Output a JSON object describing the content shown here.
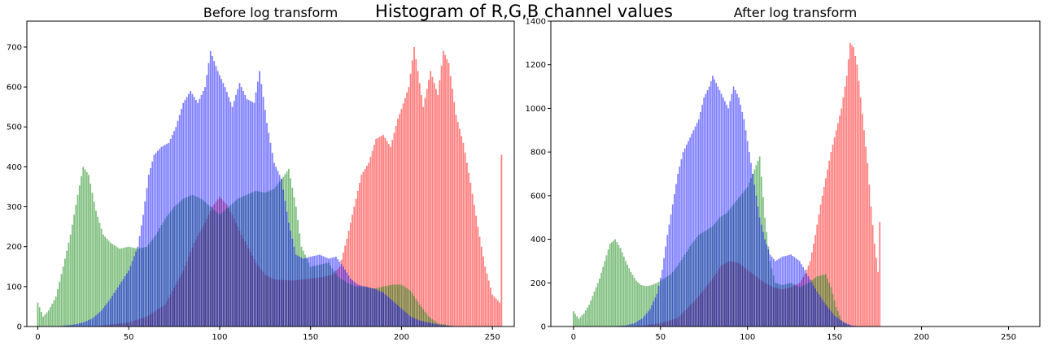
{
  "figure": {
    "title": "Histogram of R,G,B channel values"
  },
  "colors": {
    "red": "#ff0000",
    "green": "#008000",
    "blue": "#0000ff",
    "bar_alpha": 0.5
  },
  "chart_data": [
    {
      "type": "bar",
      "title": "Before log transform",
      "xlim": [
        -6,
        262
      ],
      "ylim": [
        0,
        765
      ],
      "xticks": [
        0,
        50,
        100,
        150,
        200,
        250
      ],
      "yticks": [
        0,
        100,
        200,
        300,
        400,
        500,
        600,
        700
      ],
      "series": [
        {
          "color": "red",
          "points": [
            [
              0,
              0
            ],
            [
              30,
              0
            ],
            [
              40,
              5
            ],
            [
              50,
              10
            ],
            [
              60,
              25
            ],
            [
              70,
              55
            ],
            [
              80,
              140
            ],
            [
              86,
              210
            ],
            [
              92,
              260
            ],
            [
              96,
              300
            ],
            [
              100,
              325
            ],
            [
              104,
              305
            ],
            [
              108,
              270
            ],
            [
              112,
              230
            ],
            [
              116,
              195
            ],
            [
              120,
              160
            ],
            [
              125,
              130
            ],
            [
              130,
              118
            ],
            [
              140,
              115
            ],
            [
              150,
              120
            ],
            [
              158,
              125
            ],
            [
              162,
              130
            ],
            [
              166,
              150
            ],
            [
              170,
              220
            ],
            [
              174,
              300
            ],
            [
              178,
              380
            ],
            [
              182,
              410
            ],
            [
              186,
              470
            ],
            [
              190,
              480
            ],
            [
              194,
              450
            ],
            [
              198,
              520
            ],
            [
              200,
              545
            ],
            [
              204,
              600
            ],
            [
              207,
              700
            ],
            [
              212,
              550
            ],
            [
              216,
              640
            ],
            [
              220,
              580
            ],
            [
              223,
              690
            ],
            [
              226,
              660
            ],
            [
              230,
              530
            ],
            [
              234,
              460
            ],
            [
              238,
              360
            ],
            [
              242,
              250
            ],
            [
              246,
              150
            ],
            [
              250,
              80
            ],
            [
              254,
              60
            ],
            [
              255,
              430
            ]
          ]
        },
        {
          "color": "green",
          "points": [
            [
              0,
              60
            ],
            [
              3,
              25
            ],
            [
              6,
              40
            ],
            [
              10,
              75
            ],
            [
              14,
              150
            ],
            [
              18,
              230
            ],
            [
              22,
              330
            ],
            [
              25,
              400
            ],
            [
              28,
              380
            ],
            [
              32,
              290
            ],
            [
              36,
              230
            ],
            [
              40,
              210
            ],
            [
              45,
              195
            ],
            [
              50,
              200
            ],
            [
              55,
              195
            ],
            [
              60,
              200
            ],
            [
              65,
              230
            ],
            [
              70,
              270
            ],
            [
              75,
              300
            ],
            [
              80,
              320
            ],
            [
              85,
              330
            ],
            [
              90,
              320
            ],
            [
              95,
              300
            ],
            [
              100,
              280
            ],
            [
              105,
              300
            ],
            [
              110,
              320
            ],
            [
              115,
              330
            ],
            [
              120,
              340
            ],
            [
              125,
              335
            ],
            [
              130,
              345
            ],
            [
              135,
              375
            ],
            [
              138,
              395
            ],
            [
              142,
              300
            ],
            [
              145,
              200
            ],
            [
              150,
              150
            ],
            [
              155,
              155
            ],
            [
              160,
              160
            ],
            [
              165,
              125
            ],
            [
              170,
              110
            ],
            [
              175,
              100
            ],
            [
              180,
              100
            ],
            [
              185,
              95
            ],
            [
              190,
              100
            ],
            [
              195,
              105
            ],
            [
              200,
              105
            ],
            [
              205,
              90
            ],
            [
              210,
              55
            ],
            [
              215,
              25
            ],
            [
              220,
              8
            ],
            [
              230,
              0
            ],
            [
              255,
              0
            ]
          ]
        },
        {
          "color": "blue",
          "points": [
            [
              0,
              0
            ],
            [
              10,
              0
            ],
            [
              20,
              5
            ],
            [
              25,
              10
            ],
            [
              30,
              20
            ],
            [
              35,
              40
            ],
            [
              40,
              70
            ],
            [
              45,
              105
            ],
            [
              50,
              140
            ],
            [
              55,
              200
            ],
            [
              58,
              280
            ],
            [
              61,
              380
            ],
            [
              64,
              430
            ],
            [
              68,
              450
            ],
            [
              72,
              460
            ],
            [
              76,
              500
            ],
            [
              80,
              560
            ],
            [
              84,
              590
            ],
            [
              88,
              560
            ],
            [
              92,
              600
            ],
            [
              95,
              690
            ],
            [
              99,
              640
            ],
            [
              103,
              600
            ],
            [
              107,
              550
            ],
            [
              111,
              610
            ],
            [
              115,
              570
            ],
            [
              119,
              560
            ],
            [
              122,
              640
            ],
            [
              126,
              510
            ],
            [
              130,
              410
            ],
            [
              134,
              370
            ],
            [
              138,
              260
            ],
            [
              142,
              180
            ],
            [
              146,
              170
            ],
            [
              150,
              175
            ],
            [
              155,
              180
            ],
            [
              160,
              170
            ],
            [
              164,
              175
            ],
            [
              168,
              150
            ],
            [
              172,
              120
            ],
            [
              176,
              105
            ],
            [
              180,
              100
            ],
            [
              185,
              95
            ],
            [
              190,
              85
            ],
            [
              195,
              65
            ],
            [
              200,
              45
            ],
            [
              205,
              25
            ],
            [
              210,
              15
            ],
            [
              220,
              5
            ],
            [
              230,
              0
            ],
            [
              255,
              0
            ]
          ]
        }
      ]
    },
    {
      "type": "bar",
      "title": "After log transform",
      "xlim": [
        -13,
        268
      ],
      "ylim": [
        0,
        1400
      ],
      "xticks": [
        0,
        50,
        100,
        150,
        200,
        250
      ],
      "yticks": [
        0,
        200,
        400,
        600,
        800,
        1000,
        1200,
        1400
      ],
      "series": [
        {
          "color": "red",
          "points": [
            [
              0,
              0
            ],
            [
              30,
              0
            ],
            [
              40,
              5
            ],
            [
              50,
              15
            ],
            [
              60,
              40
            ],
            [
              65,
              80
            ],
            [
              70,
              120
            ],
            [
              75,
              170
            ],
            [
              80,
              220
            ],
            [
              85,
              280
            ],
            [
              90,
              300
            ],
            [
              95,
              290
            ],
            [
              100,
              260
            ],
            [
              105,
              230
            ],
            [
              110,
              200
            ],
            [
              115,
              180
            ],
            [
              120,
              170
            ],
            [
              125,
              180
            ],
            [
              130,
              200
            ],
            [
              133,
              240
            ],
            [
              136,
              300
            ],
            [
              139,
              420
            ],
            [
              142,
              560
            ],
            [
              145,
              680
            ],
            [
              148,
              800
            ],
            [
              151,
              900
            ],
            [
              154,
              1000
            ],
            [
              157,
              1150
            ],
            [
              159,
              1300
            ],
            [
              161,
              1280
            ],
            [
              163,
              1200
            ],
            [
              165,
              1050
            ],
            [
              167,
              900
            ],
            [
              169,
              750
            ],
            [
              171,
              550
            ],
            [
              173,
              380
            ],
            [
              175,
              250
            ],
            [
              176,
              480
            ],
            [
              177,
              0
            ],
            [
              255,
              0
            ]
          ]
        },
        {
          "color": "green",
          "points": [
            [
              0,
              70
            ],
            [
              3,
              35
            ],
            [
              6,
              60
            ],
            [
              9,
              100
            ],
            [
              12,
              160
            ],
            [
              15,
              220
            ],
            [
              18,
              300
            ],
            [
              21,
              380
            ],
            [
              24,
              400
            ],
            [
              27,
              360
            ],
            [
              30,
              300
            ],
            [
              33,
              250
            ],
            [
              36,
              210
            ],
            [
              39,
              190
            ],
            [
              42,
              185
            ],
            [
              45,
              190
            ],
            [
              48,
              200
            ],
            [
              52,
              220
            ],
            [
              56,
              240
            ],
            [
              60,
              280
            ],
            [
              64,
              330
            ],
            [
              68,
              380
            ],
            [
              72,
              420
            ],
            [
              76,
              440
            ],
            [
              80,
              460
            ],
            [
              84,
              500
            ],
            [
              88,
              520
            ],
            [
              92,
              560
            ],
            [
              96,
              600
            ],
            [
              100,
              640
            ],
            [
              104,
              720
            ],
            [
              107,
              780
            ],
            [
              110,
              500
            ],
            [
              113,
              300
            ],
            [
              116,
              200
            ],
            [
              120,
              190
            ],
            [
              125,
              200
            ],
            [
              130,
              180
            ],
            [
              135,
              200
            ],
            [
              140,
              230
            ],
            [
              145,
              240
            ],
            [
              148,
              180
            ],
            [
              151,
              90
            ],
            [
              154,
              30
            ],
            [
              157,
              10
            ],
            [
              160,
              0
            ],
            [
              255,
              0
            ]
          ]
        },
        {
          "color": "blue",
          "points": [
            [
              0,
              0
            ],
            [
              20,
              0
            ],
            [
              30,
              5
            ],
            [
              35,
              15
            ],
            [
              40,
              40
            ],
            [
              44,
              80
            ],
            [
              48,
              150
            ],
            [
              51,
              260
            ],
            [
              54,
              420
            ],
            [
              57,
              560
            ],
            [
              60,
              700
            ],
            [
              63,
              800
            ],
            [
              66,
              850
            ],
            [
              69,
              900
            ],
            [
              72,
              950
            ],
            [
              75,
              1050
            ],
            [
              78,
              1100
            ],
            [
              80,
              1150
            ],
            [
              83,
              1100
            ],
            [
              86,
              1050
            ],
            [
              89,
              1000
            ],
            [
              92,
              1100
            ],
            [
              95,
              1050
            ],
            [
              98,
              950
            ],
            [
              101,
              800
            ],
            [
              104,
              650
            ],
            [
              107,
              500
            ],
            [
              110,
              400
            ],
            [
              113,
              330
            ],
            [
              116,
              300
            ],
            [
              120,
              320
            ],
            [
              125,
              330
            ],
            [
              130,
              300
            ],
            [
              135,
              230
            ],
            [
              140,
              160
            ],
            [
              145,
              100
            ],
            [
              150,
              50
            ],
            [
              155,
              20
            ],
            [
              160,
              5
            ],
            [
              165,
              0
            ],
            [
              255,
              0
            ]
          ]
        }
      ]
    }
  ]
}
